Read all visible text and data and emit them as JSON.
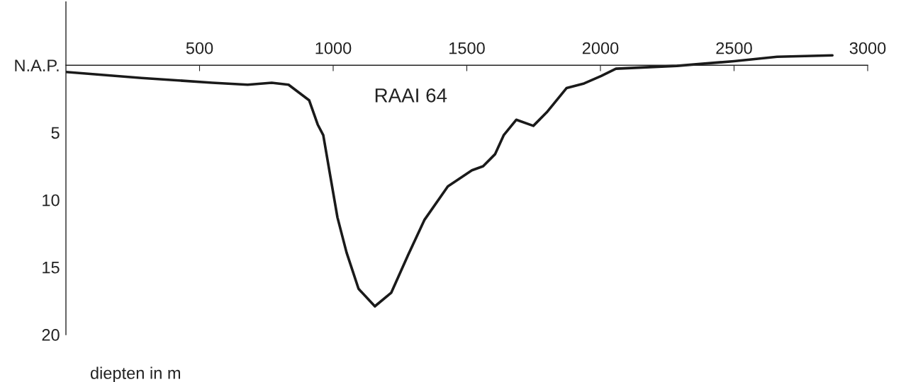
{
  "chart_data": {
    "type": "line",
    "title": "RAAI 64",
    "annotations": [
      "diepten in m"
    ],
    "x": [
      0,
      283,
      548,
      680,
      770,
      833,
      910,
      942,
      963,
      989,
      1016,
      1050,
      1095,
      1156,
      1217,
      1280,
      1341,
      1429,
      1519,
      1561,
      1606,
      1638,
      1685,
      1749,
      1799,
      1873,
      1939,
      2003,
      2058,
      2286,
      2500,
      2661,
      2868
    ],
    "series": [
      {
        "color": "#1a1a1a",
        "values": [
          0.5,
          0.95,
          1.3,
          1.45,
          1.3,
          1.45,
          2.6,
          4.4,
          5.2,
          8.2,
          11.3,
          13.9,
          16.6,
          17.9,
          16.9,
          14.1,
          11.5,
          9.0,
          7.8,
          7.5,
          6.6,
          5.2,
          4.05,
          4.5,
          3.5,
          1.7,
          1.35,
          0.8,
          0.26,
          0.05,
          -0.3,
          -0.63,
          -0.73
        ]
      }
    ],
    "xlim": [
      0,
      3000
    ],
    "xticks": [
      500,
      1000,
      1500,
      2000,
      2500,
      3000
    ],
    "ylim": [
      20,
      -4.7
    ],
    "yticks": [
      {
        "value": 0,
        "label": "N.A.P."
      },
      5,
      10,
      15,
      20
    ],
    "grid": false,
    "marker": "none",
    "line_style": "solid"
  }
}
